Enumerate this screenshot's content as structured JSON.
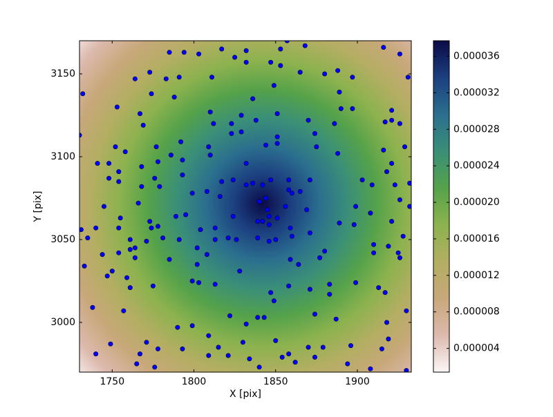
{
  "chart_data": {
    "type": "scatter",
    "x_label": "X [pix]",
    "y_label": "Y [pix]",
    "xlim": [
      1730,
      1933
    ],
    "ylim": [
      2970,
      3170
    ],
    "xticks": [
      1750,
      1800,
      1850,
      1900
    ],
    "yticks": [
      3000,
      3050,
      3100,
      3150
    ],
    "point_color": "#0000ff",
    "x": [
      1785,
      1794,
      1803,
      1817,
      1825,
      1832,
      1832,
      1847,
      1853,
      1857,
      1868,
      1865,
      1880,
      1888,
      1897,
      1916,
      1926,
      1931,
      1732,
      1764,
      1773,
      1774,
      1783,
      1788,
      1791,
      1811,
      1849,
      1836,
      1889,
      1753,
      1767,
      1769,
      1810,
      1812,
      1823,
      1829,
      1838,
      1851,
      1870,
      1890,
      1897,
      1886,
      1917,
      1921,
      1921,
      1926,
      1730,
      1752,
      1758,
      1741,
      1748,
      1768,
      1777,
      1778,
      1786,
      1792,
      1793,
      1809,
      1810,
      1823,
      1829,
      1832,
      1844,
      1851,
      1851,
      1875,
      1874,
      1888,
      1916,
      1929,
      1921,
      1918,
      1903,
      1909,
      1923,
      1932,
      1754,
      1754,
      1748,
      1768,
      1776,
      1779,
      1793,
      1799,
      1808,
      1817,
      1824,
      1816,
      1832,
      1836,
      1842,
      1847,
      1858,
      1858,
      1860,
      1865,
      1871,
      1840,
      1844,
      1845,
      1842,
      1839,
      1846,
      1846,
      1851,
      1856,
      1869,
      1824,
      1789,
      1795,
      1804,
      1813,
      1813,
      1821,
      1826,
      1839,
      1846,
      1850,
      1860,
      1859,
      1871,
      1766,
      1773,
      1755,
      1754,
      1774,
      1778,
      1781,
      1771,
      1761,
      1764,
      1761,
      1754,
      1764,
      1744,
      1740,
      1745,
      1735,
      1731,
      1733,
      1750,
      1747,
      1759,
      1761,
      1775,
      1785,
      1791,
      1802,
      1802,
      1808,
      1799,
      1803,
      1813,
      1828,
      1847,
      1858,
      1849,
      1859,
      1864,
      1877,
      1880,
      1871,
      1883,
      1883,
      1899,
      1913,
      1917,
      1910,
      1910,
      1919,
      1925,
      1926,
      1928,
      1921,
      1898,
      1889,
      1899,
      1908,
      1932,
      1926,
      1738,
      1757,
      1790,
      1799,
      1822,
      1839,
      1832,
      1843,
      1874,
      1887,
      1918,
      1930,
      1749,
      1740,
      1767,
      1771,
      1778,
      1793,
      1809,
      1809,
      1815,
      1821,
      1830,
      1834,
      1840,
      1850,
      1854,
      1858,
      1862,
      1870,
      1874,
      1879,
      1894,
      1896,
      1908,
      1915,
      1919,
      1930,
      1765,
      1776,
      1853
    ],
    "y": [
      3163,
      3163,
      3162,
      3165,
      3160,
      3164,
      3157,
      3157,
      3155,
      3170,
      3167,
      3151,
      3150,
      3152,
      3148,
      3166,
      3162,
      3148,
      3138,
      3147,
      3151,
      3138,
      3147,
      3136,
      3148,
      3148,
      3143,
      3135,
      3139,
      3130,
      3126,
      3119,
      3127,
      3120,
      3120,
      3125,
      3122,
      3126,
      3122,
      3129,
      3129,
      3120,
      3121,
      3128,
      3122,
      3120,
      3113,
      3106,
      3103,
      3096,
      3096,
      3094,
      3106,
      3097,
      3101,
      3109,
      3098,
      3106,
      3101,
      3114,
      3115,
      3096,
      3107,
      3112,
      3108,
      3106,
      3114,
      3102,
      3104,
      3106,
      3096,
      3091,
      3086,
      3083,
      3083,
      3084,
      3091,
      3085,
      3087,
      3082,
      3087,
      3082,
      3089,
      3078,
      3079,
      3085,
      3086,
      3076,
      3083,
      3084,
      3083,
      3086,
      3086,
      3080,
      3078,
      3079,
      3086,
      3073,
      3075,
      3068,
      3061,
      3061,
      3059,
      3064,
      3063,
      3070,
      3068,
      3064,
      3064,
      3065,
      3056,
      3057,
      3050,
      3051,
      3050,
      3051,
      3049,
      3050,
      3052,
      3057,
      3054,
      3072,
      3061,
      3063,
      3057,
      3057,
      3058,
      3051,
      3049,
      3050,
      3045,
      3044,
      3042,
      3039,
      3041,
      3057,
      3070,
      3051,
      3056,
      3034,
      3031,
      3028,
      3027,
      3021,
      3022,
      3038,
      3050,
      3045,
      3035,
      3041,
      3025,
      3024,
      3023,
      3031,
      3018,
      3022,
      3013,
      3038,
      3035,
      3039,
      3043,
      3020,
      3023,
      3017,
      3024,
      3021,
      3018,
      3047,
      3042,
      3046,
      3042,
      3039,
      3052,
      3061,
      3059,
      3060,
      3070,
      3066,
      3070,
      3074,
      3009,
      3007,
      2997,
      2998,
      3004,
      3003,
      2999,
      3003,
      3005,
      3002,
      3000,
      3007,
      2987,
      2981,
      2981,
      2988,
      2984,
      2984,
      2992,
      2980,
      2985,
      2980,
      2988,
      2978,
      2973,
      2989,
      2979,
      2981,
      2976,
      2985,
      2979,
      2985,
      2975,
      2986,
      2972,
      2984,
      2990,
      2971,
      2975,
      2973,
      3165
    ],
    "colorbar": {
      "clim": [
        1.4e-06,
        3.77e-05
      ],
      "ticks": [
        {
          "value": 4e-06,
          "label": "0.000004"
        },
        {
          "value": 8e-06,
          "label": "0.000008"
        },
        {
          "value": 1.2e-05,
          "label": "0.000012"
        },
        {
          "value": 1.6e-05,
          "label": "0.000016"
        },
        {
          "value": 2e-05,
          "label": "0.000020"
        },
        {
          "value": 2.4e-05,
          "label": "0.000024"
        },
        {
          "value": 2.8e-05,
          "label": "0.000028"
        },
        {
          "value": 3.2e-05,
          "label": "0.000032"
        },
        {
          "value": 3.6e-05,
          "label": "0.000036"
        }
      ],
      "colormap": [
        "#fbf6f6",
        "#dcb9ad",
        "#c8a87a",
        "#b3ae62",
        "#8cb24e",
        "#55a24a",
        "#3a8f78",
        "#2b6f8e",
        "#1c3f80",
        "#0b0b46"
      ]
    }
  }
}
